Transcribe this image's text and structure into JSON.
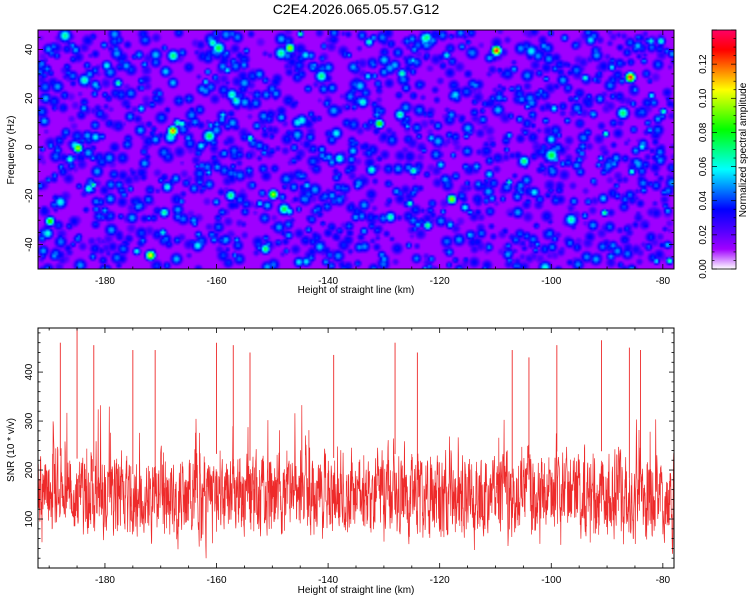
{
  "chart_data": [
    {
      "type": "heatmap",
      "title": "C2E4.2026.065.05.57.G12",
      "xlabel": "Height of straight line (km)",
      "ylabel": "Frequency (Hz)",
      "xlim": [
        -192,
        -78
      ],
      "ylim": [
        -50,
        48
      ],
      "x_ticks": [
        -180,
        -160,
        -140,
        -120,
        -100,
        -80
      ],
      "y_ticks": [
        -40,
        -20,
        0,
        20,
        40
      ],
      "z_label": "Normalized spectral amplitude",
      "z_range": [
        0.0,
        0.14
      ],
      "z_ticks": [
        0.0,
        0.02,
        0.04,
        0.06,
        0.08,
        0.1,
        0.12
      ],
      "z_tick_labels": [
        "0.00",
        "0.02",
        "0.04",
        "0.06",
        "0.08",
        "0.10",
        "0.12"
      ],
      "colormap": [
        "#ffffff",
        "#a000ff",
        "#4b00ff",
        "#0000ff",
        "#0080ff",
        "#00ffff",
        "#00ff80",
        "#00ff00",
        "#80ff00",
        "#ffff00",
        "#ff8000",
        "#ff0000",
        "#ff0066"
      ],
      "description_values": "dense speckle field of local spectral peaks; typical amplitude 0.02-0.05, sparse peaks up to ~0.13",
      "peaks": [
        {
          "x": -185,
          "y": 0,
          "z": 0.1
        },
        {
          "x": -168,
          "y": 7,
          "z": 0.12
        },
        {
          "x": -172,
          "y": -44,
          "z": 0.11
        },
        {
          "x": -150,
          "y": -19,
          "z": 0.1
        },
        {
          "x": -147,
          "y": 41,
          "z": 0.1
        },
        {
          "x": -118,
          "y": -21,
          "z": 0.1
        },
        {
          "x": -110,
          "y": 40,
          "z": 0.13
        },
        {
          "x": -86,
          "y": 29,
          "z": 0.13
        },
        {
          "x": -190,
          "y": -30,
          "z": 0.09
        },
        {
          "x": -131,
          "y": 10,
          "z": 0.09
        }
      ]
    },
    {
      "type": "line",
      "title": "",
      "xlabel": "Height of straight line (km)",
      "ylabel": "SNR (10 * v/v)",
      "xlim": [
        -192,
        -78
      ],
      "ylim": [
        0,
        490
      ],
      "x_ticks": [
        -180,
        -160,
        -140,
        -120,
        -100,
        -80
      ],
      "y_ticks": [
        100,
        200,
        300,
        400
      ],
      "series": [
        {
          "name": "SNR",
          "color": "#ee2a2a",
          "typical_range": [
            60,
            270
          ],
          "mean": 150,
          "max": 490,
          "min": 5
        }
      ],
      "spikes": [
        {
          "x": -185,
          "y": 490
        },
        {
          "x": -188,
          "y": 460
        },
        {
          "x": -182,
          "y": 455
        },
        {
          "x": -175,
          "y": 445
        },
        {
          "x": -171,
          "y": 445
        },
        {
          "x": -160,
          "y": 460
        },
        {
          "x": -157,
          "y": 455
        },
        {
          "x": -154,
          "y": 440
        },
        {
          "x": -139,
          "y": 435
        },
        {
          "x": -128,
          "y": 460
        },
        {
          "x": -124,
          "y": 440
        },
        {
          "x": -107,
          "y": 445
        },
        {
          "x": -104,
          "y": 430
        },
        {
          "x": -99,
          "y": 455
        },
        {
          "x": -91,
          "y": 465
        },
        {
          "x": -86,
          "y": 450
        },
        {
          "x": -84,
          "y": 445
        }
      ]
    }
  ],
  "colors": {
    "line": "#ee2a2a",
    "axis": "#000000",
    "background": "#ffffff"
  }
}
